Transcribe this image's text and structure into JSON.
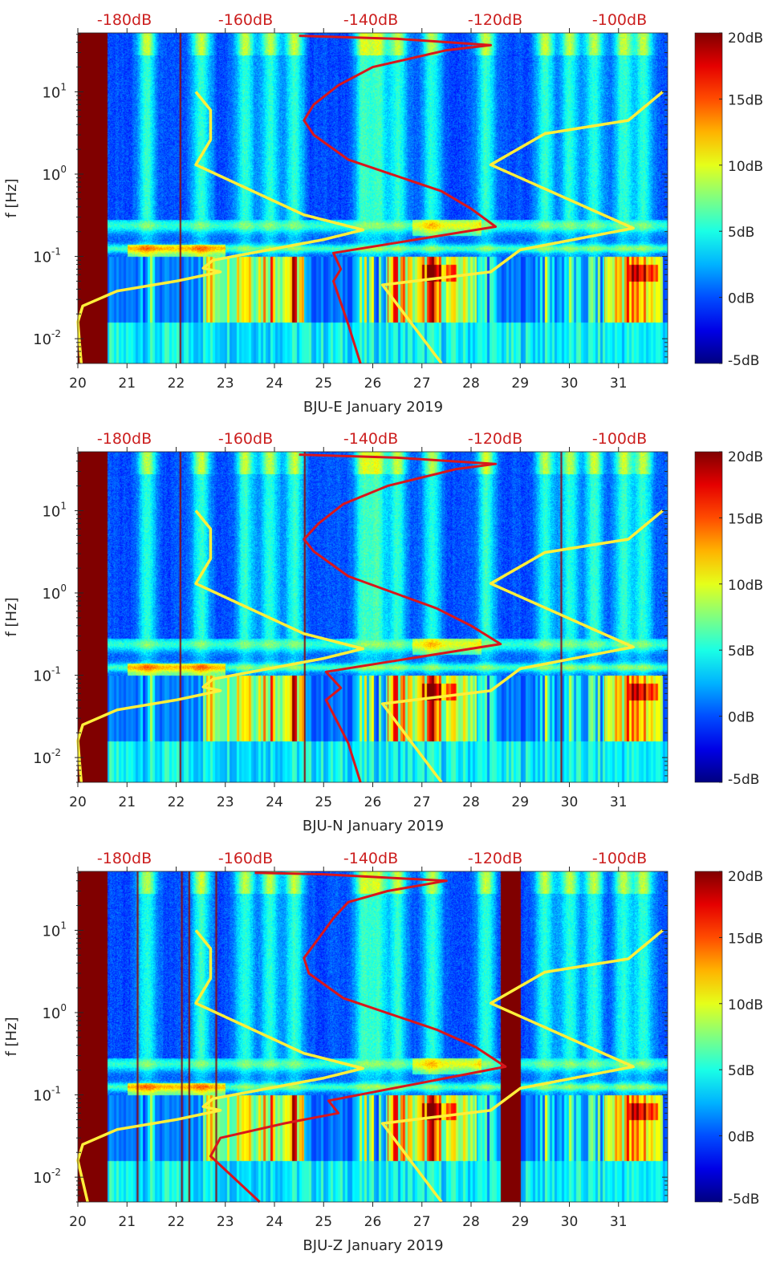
{
  "chart_data": [
    {
      "type": "heatmap",
      "title": "",
      "xlabel": "BJU-E January 2019",
      "ylabel": "f [Hz]",
      "x_ticks": [
        "20",
        "21",
        "22",
        "23",
        "24",
        "25",
        "26",
        "27",
        "28",
        "29",
        "30",
        "31"
      ],
      "xlim": [
        20,
        32
      ],
      "ylim": [
        0.005,
        52
      ],
      "yscale": "log",
      "y_ticks": [
        {
          "base": "10",
          "exp": "-2",
          "value": 0.01
        },
        {
          "base": "10",
          "exp": "-1",
          "value": 0.1
        },
        {
          "base": "10",
          "exp": "0",
          "value": 1
        },
        {
          "base": "10",
          "exp": "1",
          "value": 10
        }
      ],
      "top_axis_labels": [
        "-180dB",
        "-160dB",
        "-140dB",
        "-120dB",
        "-100dB"
      ],
      "colorbar": {
        "ticks": [
          "20dB",
          "15dB",
          "10dB",
          "5dB",
          "0dB",
          "-5dB"
        ],
        "range": [
          -5,
          20
        ],
        "colormap": "jet"
      },
      "gaps": [
        {
          "start": 20.0,
          "end": 20.6
        }
      ],
      "spikes": [
        22.07
      ],
      "series": [
        {
          "name": "yellow-model-low",
          "color": "#ffef3a",
          "points": [
            [
              20.07,
              0.005
            ],
            [
              20.0,
              0.016
            ],
            [
              20.1,
              0.025
            ],
            [
              20.8,
              0.038
            ],
            [
              22.0,
              0.05
            ],
            [
              22.9,
              0.065
            ],
            [
              22.55,
              0.072
            ],
            [
              22.75,
              0.09
            ],
            [
              25.0,
              0.16
            ],
            [
              25.8,
              0.21
            ],
            [
              24.6,
              0.32
            ],
            [
              22.4,
              1.3
            ],
            [
              22.7,
              2.6
            ],
            [
              22.7,
              6.0
            ],
            [
              22.4,
              10
            ]
          ]
        },
        {
          "name": "yellow-model-high",
          "color": "#ffef3a",
          "points": [
            [
              27.4,
              0.005
            ],
            [
              26.2,
              0.045
            ],
            [
              28.4,
              0.065
            ],
            [
              29.0,
              0.12
            ],
            [
              31.3,
              0.22
            ],
            [
              28.4,
              1.3
            ],
            [
              29.5,
              3.1
            ],
            [
              31.2,
              4.5
            ],
            [
              31.9,
              10
            ]
          ]
        },
        {
          "name": "red-noise-model",
          "color": "#d8161c",
          "points": [
            [
              25.75,
              0.005
            ],
            [
              25.5,
              0.015
            ],
            [
              25.2,
              0.05
            ],
            [
              25.35,
              0.07
            ],
            [
              25.2,
              0.11
            ],
            [
              28.5,
              0.23
            ],
            [
              28.0,
              0.38
            ],
            [
              27.4,
              0.62
            ],
            [
              25.5,
              1.5
            ],
            [
              24.8,
              3.0
            ],
            [
              24.6,
              4.5
            ],
            [
              24.8,
              7
            ],
            [
              25.3,
              12
            ],
            [
              26.0,
              20
            ],
            [
              27.5,
              32
            ],
            [
              28.4,
              37
            ],
            [
              26.5,
              44
            ],
            [
              24.5,
              48
            ]
          ]
        }
      ]
    },
    {
      "type": "heatmap",
      "title": "",
      "xlabel": "BJU-N January 2019",
      "ylabel": "f [Hz]",
      "x_ticks": [
        "20",
        "21",
        "22",
        "23",
        "24",
        "25",
        "26",
        "27",
        "28",
        "29",
        "30",
        "31"
      ],
      "xlim": [
        20,
        32
      ],
      "ylim": [
        0.005,
        52
      ],
      "yscale": "log",
      "y_ticks": [
        {
          "base": "10",
          "exp": "-2",
          "value": 0.01
        },
        {
          "base": "10",
          "exp": "-1",
          "value": 0.1
        },
        {
          "base": "10",
          "exp": "0",
          "value": 1
        },
        {
          "base": "10",
          "exp": "1",
          "value": 10
        }
      ],
      "top_axis_labels": [
        "-180dB",
        "-160dB",
        "-140dB",
        "-120dB",
        "-100dB"
      ],
      "colorbar": {
        "ticks": [
          "20dB",
          "15dB",
          "10dB",
          "5dB",
          "0dB",
          "-5dB"
        ],
        "range": [
          -5,
          20
        ],
        "colormap": "jet"
      },
      "gaps": [
        {
          "start": 20.0,
          "end": 20.6
        }
      ],
      "spikes": [
        22.07,
        24.6,
        29.82
      ],
      "series": [
        {
          "name": "yellow-model-low",
          "color": "#ffef3a",
          "points": [
            [
              20.07,
              0.005
            ],
            [
              20.0,
              0.016
            ],
            [
              20.1,
              0.025
            ],
            [
              20.8,
              0.038
            ],
            [
              22.0,
              0.05
            ],
            [
              22.9,
              0.065
            ],
            [
              22.55,
              0.072
            ],
            [
              22.75,
              0.09
            ],
            [
              25.0,
              0.16
            ],
            [
              25.8,
              0.21
            ],
            [
              24.6,
              0.32
            ],
            [
              22.4,
              1.3
            ],
            [
              22.7,
              2.6
            ],
            [
              22.7,
              6.0
            ],
            [
              22.4,
              10
            ]
          ]
        },
        {
          "name": "yellow-model-high",
          "color": "#ffef3a",
          "points": [
            [
              27.4,
              0.005
            ],
            [
              26.2,
              0.045
            ],
            [
              28.4,
              0.065
            ],
            [
              29.0,
              0.12
            ],
            [
              31.3,
              0.22
            ],
            [
              28.4,
              1.3
            ],
            [
              29.5,
              3.1
            ],
            [
              31.2,
              4.5
            ],
            [
              31.9,
              10
            ]
          ]
        },
        {
          "name": "red-noise-model",
          "color": "#d8161c",
          "points": [
            [
              25.75,
              0.005
            ],
            [
              25.5,
              0.015
            ],
            [
              25.05,
              0.05
            ],
            [
              25.35,
              0.07
            ],
            [
              25.05,
              0.11
            ],
            [
              28.6,
              0.24
            ],
            [
              28.0,
              0.4
            ],
            [
              27.3,
              0.65
            ],
            [
              25.5,
              1.6
            ],
            [
              24.8,
              3.2
            ],
            [
              24.6,
              4.5
            ],
            [
              24.9,
              7
            ],
            [
              25.4,
              12
            ],
            [
              26.3,
              20
            ],
            [
              27.7,
              32
            ],
            [
              28.5,
              37
            ],
            [
              26.5,
              44
            ],
            [
              24.5,
              48
            ]
          ]
        }
      ]
    },
    {
      "type": "heatmap",
      "title": "",
      "xlabel": "BJU-Z January 2019",
      "ylabel": "f [Hz]",
      "x_ticks": [
        "20",
        "21",
        "22",
        "23",
        "24",
        "25",
        "26",
        "27",
        "28",
        "29",
        "30",
        "31"
      ],
      "xlim": [
        20,
        32
      ],
      "ylim": [
        0.005,
        52
      ],
      "yscale": "log",
      "y_ticks": [
        {
          "base": "10",
          "exp": "-2",
          "value": 0.01
        },
        {
          "base": "10",
          "exp": "-1",
          "value": 0.1
        },
        {
          "base": "10",
          "exp": "0",
          "value": 1
        },
        {
          "base": "10",
          "exp": "1",
          "value": 10
        }
      ],
      "top_axis_labels": [
        "-180dB",
        "-160dB",
        "-140dB",
        "-120dB",
        "-100dB"
      ],
      "colorbar": {
        "ticks": [
          "20dB",
          "15dB",
          "10dB",
          "5dB",
          "0dB",
          "-5dB"
        ],
        "range": [
          -5,
          20
        ],
        "colormap": "jet"
      },
      "gaps": [
        {
          "start": 20.0,
          "end": 20.6
        },
        {
          "start": 28.6,
          "end": 29.0
        }
      ],
      "spikes": [
        21.2,
        22.1,
        22.25,
        22.8
      ],
      "series": [
        {
          "name": "yellow-model-low",
          "color": "#ffef3a",
          "points": [
            [
              20.2,
              0.005
            ],
            [
              20.0,
              0.016
            ],
            [
              20.1,
              0.025
            ],
            [
              20.8,
              0.038
            ],
            [
              22.0,
              0.05
            ],
            [
              22.9,
              0.065
            ],
            [
              22.55,
              0.072
            ],
            [
              22.75,
              0.09
            ],
            [
              25.0,
              0.16
            ],
            [
              25.8,
              0.21
            ],
            [
              24.6,
              0.32
            ],
            [
              22.4,
              1.3
            ],
            [
              22.7,
              2.6
            ],
            [
              22.7,
              6.0
            ],
            [
              22.4,
              10
            ]
          ]
        },
        {
          "name": "yellow-model-high",
          "color": "#ffef3a",
          "points": [
            [
              27.4,
              0.005
            ],
            [
              26.2,
              0.045
            ],
            [
              28.4,
              0.065
            ],
            [
              29.0,
              0.12
            ],
            [
              31.3,
              0.22
            ],
            [
              28.4,
              1.3
            ],
            [
              29.5,
              3.1
            ],
            [
              31.2,
              4.5
            ],
            [
              31.9,
              10
            ]
          ]
        },
        {
          "name": "red-noise-model",
          "color": "#d8161c",
          "points": [
            [
              23.7,
              0.005
            ],
            [
              22.7,
              0.018
            ],
            [
              22.9,
              0.03
            ],
            [
              24.2,
              0.045
            ],
            [
              25.3,
              0.06
            ],
            [
              25.1,
              0.085
            ],
            [
              28.7,
              0.22
            ],
            [
              28.1,
              0.38
            ],
            [
              27.3,
              0.62
            ],
            [
              25.4,
              1.5
            ],
            [
              24.7,
              3.0
            ],
            [
              24.6,
              4.6
            ],
            [
              24.9,
              8
            ],
            [
              25.2,
              14
            ],
            [
              25.5,
              22
            ],
            [
              26.3,
              30
            ],
            [
              27.5,
              40
            ],
            [
              25.0,
              48
            ],
            [
              23.6,
              50
            ]
          ]
        }
      ]
    }
  ]
}
